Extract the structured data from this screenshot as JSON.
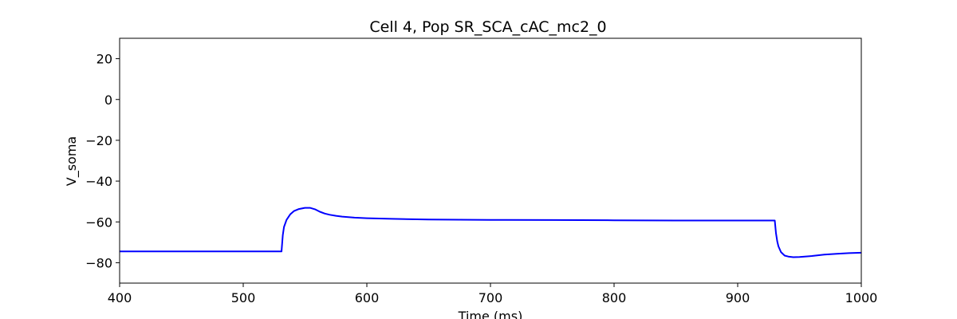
{
  "chart_data": {
    "type": "line",
    "title": "Cell 4, Pop SR_SCA_cAC_mc2_0",
    "xlabel": "Time (ms)",
    "ylabel": "V_soma",
    "xlim": [
      400,
      1000
    ],
    "ylim": [
      -90,
      30
    ],
    "xticks": [
      400,
      500,
      600,
      700,
      800,
      900,
      1000
    ],
    "xtick_labels": [
      "400",
      "500",
      "600",
      "700",
      "800",
      "900",
      "1000"
    ],
    "yticks": [
      20,
      0,
      -20,
      -40,
      -60,
      -80
    ],
    "ytick_labels": [
      "20",
      "0",
      "−20",
      "−40",
      "−60",
      "−80"
    ],
    "grid": false,
    "series": [
      {
        "color": "#0000ff",
        "x": [
          400,
          530,
          531,
          532,
          533,
          535,
          538,
          541,
          545,
          550,
          554,
          558,
          562,
          566,
          570,
          575,
          580,
          590,
          600,
          620,
          650,
          700,
          750,
          800,
          850,
          900,
          930,
          931,
          932,
          933,
          935,
          938,
          941,
          945,
          950,
          960,
          970,
          980,
          990,
          1000
        ],
        "y": [
          -74.5,
          -74.5,
          -74.5,
          -66.5,
          -62.5,
          -59.0,
          -56.3,
          -54.7,
          -53.7,
          -53.1,
          -53.1,
          -53.8,
          -55.0,
          -55.9,
          -56.5,
          -57.0,
          -57.4,
          -57.9,
          -58.2,
          -58.5,
          -58.8,
          -59.0,
          -59.1,
          -59.2,
          -59.3,
          -59.3,
          -59.3,
          -65.5,
          -69.5,
          -72.0,
          -74.8,
          -76.5,
          -77.0,
          -77.3,
          -77.2,
          -76.7,
          -76.0,
          -75.6,
          -75.3,
          -75.1
        ]
      }
    ]
  }
}
